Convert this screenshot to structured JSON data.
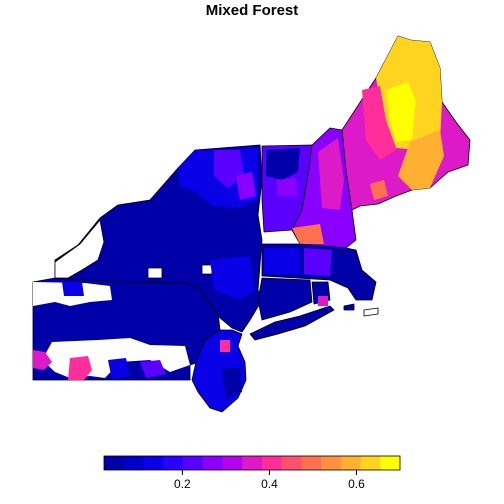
{
  "title": "Mixed Forest",
  "colorbar": {
    "colors": [
      "#0000a8",
      "#0000c8",
      "#0a00e8",
      "#2a00ff",
      "#5a00ff",
      "#8a00ff",
      "#b400ee",
      "#dc1ac8",
      "#ff2e9a",
      "#ff506e",
      "#ff7050",
      "#ff9040",
      "#ffb030",
      "#ffd420",
      "#ffff00"
    ],
    "min": 0.02,
    "max": 0.7,
    "ticks": [
      {
        "value": 0.2,
        "label": "0.2"
      },
      {
        "value": 0.4,
        "label": "0.4"
      },
      {
        "value": 0.6,
        "label": "0.6"
      }
    ]
  },
  "map": {
    "palette": {
      "low": "#0000a8",
      "blue": "#0a00e8",
      "violet": "#5a00ff",
      "purple": "#8a00ff",
      "magenta": "#dc1ac8",
      "pink": "#ff2e9a",
      "salmon": "#ff7050",
      "orange": "#ffb030",
      "yellow": "#ffd420",
      "brightyellow": "#ffff00",
      "nodata": "#ffffff"
    }
  }
}
